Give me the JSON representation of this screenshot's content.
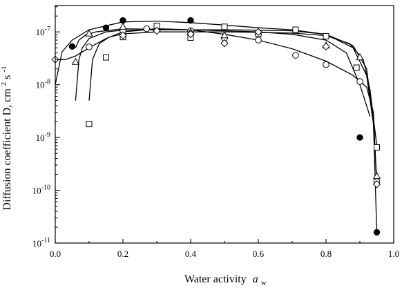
{
  "chart_data": {
    "type": "scatter",
    "title": "",
    "xlabel": "Water activity",
    "xlabel_symbol": "a",
    "xlabel_subscript": "w",
    "ylabel": "Diffusion coefficient D, cm",
    "ylabel_sup1": "2",
    "ylabel_mid": " s",
    "ylabel_sup2": "-1",
    "xlim": [
      0.0,
      1.0
    ],
    "ylim": [
      1e-11,
      5e-07
    ],
    "yscale": "log",
    "grid": false,
    "x_ticks": [
      {
        "value": 0.0,
        "label": "0.0"
      },
      {
        "value": 0.2,
        "label": "0.2"
      },
      {
        "value": 0.4,
        "label": "0.4"
      },
      {
        "value": 0.6,
        "label": "0.6"
      },
      {
        "value": 0.8,
        "label": "0.8"
      },
      {
        "value": 1.0,
        "label": "1.0"
      }
    ],
    "y_ticks": [
      {
        "value": 1e-07,
        "base": "10",
        "exp": "-7"
      },
      {
        "value": 1e-08,
        "base": "10",
        "exp": "-8"
      },
      {
        "value": 1e-09,
        "base": "10",
        "exp": "-9"
      },
      {
        "value": 1e-10,
        "base": "10",
        "exp": "-10"
      },
      {
        "value": 1e-11,
        "base": "10",
        "exp": "-11"
      }
    ],
    "series": [
      {
        "marker": "filled-circle",
        "points": [
          [
            0.05,
            5.3e-08
          ],
          [
            0.15,
            1.2e-07
          ],
          [
            0.2,
            1.65e-07
          ],
          [
            0.4,
            1.65e-07
          ],
          [
            0.9,
            1e-09
          ],
          [
            0.95,
            1.6e-11
          ]
        ]
      },
      {
        "marker": "open-circle",
        "points": [
          [
            0.1,
            5.2e-08
          ],
          [
            0.2,
            1.05e-07
          ],
          [
            0.27,
            1.15e-07
          ],
          [
            0.4,
            1.05e-07
          ],
          [
            0.5,
            7.6e-08
          ],
          [
            0.6,
            7e-08
          ],
          [
            0.71,
            3.6e-08
          ],
          [
            0.8,
            2.4e-08
          ],
          [
            0.9,
            1.15e-08
          ],
          [
            0.95,
            1.45e-10
          ]
        ]
      },
      {
        "marker": "open-triangle",
        "points": [
          [
            0.06,
            2.7e-08
          ],
          [
            0.1,
            9.3e-08
          ],
          [
            0.2,
            1.25e-07
          ],
          [
            0.3,
            1.2e-07
          ],
          [
            0.4,
            1e-07
          ],
          [
            0.5,
            8.6e-08
          ],
          [
            0.6,
            1e-07
          ],
          [
            0.71,
            1.05e-07
          ],
          [
            0.8,
            5.5e-08
          ],
          [
            0.9,
            3.3e-08
          ],
          [
            0.95,
            1.85e-10
          ]
        ]
      },
      {
        "marker": "open-square",
        "points": [
          [
            0.1,
            1.8e-09
          ],
          [
            0.15,
            3.3e-08
          ],
          [
            0.2,
            8e-08
          ],
          [
            0.3,
            1.3e-07
          ],
          [
            0.4,
            7.8e-08
          ],
          [
            0.5,
            1.25e-07
          ],
          [
            0.6,
            9.2e-08
          ],
          [
            0.71,
            1.1e-07
          ],
          [
            0.8,
            8.3e-08
          ],
          [
            0.89,
            2.1e-08
          ],
          [
            0.95,
            6.5e-10
          ]
        ]
      },
      {
        "marker": "open-diamond",
        "points": [
          [
            0.0,
            3e-08
          ],
          [
            0.2,
            8.6e-08
          ],
          [
            0.3,
            1.05e-07
          ],
          [
            0.4,
            9.1e-08
          ],
          [
            0.5,
            6.1e-08
          ],
          [
            0.6,
            1e-07
          ],
          [
            0.8,
            5.3e-08
          ],
          [
            0.95,
            1.3e-10
          ]
        ]
      }
    ],
    "fitted_curves": [
      {
        "points": [
          [
            0.0,
            1e-08
          ],
          [
            0.02,
            4.2e-08
          ],
          [
            0.05,
            7e-08
          ],
          [
            0.1,
            1.1e-07
          ],
          [
            0.2,
            1.55e-07
          ],
          [
            0.3,
            1.6e-07
          ],
          [
            0.4,
            1.5e-07
          ],
          [
            0.5,
            1.35e-07
          ],
          [
            0.6,
            1.2e-07
          ],
          [
            0.7,
            1.1e-07
          ],
          [
            0.8,
            9e-08
          ],
          [
            0.88,
            5.5e-08
          ],
          [
            0.92,
            2e-08
          ],
          [
            0.94,
            2e-09
          ],
          [
            0.95,
            1.6e-11
          ]
        ]
      },
      {
        "points": [
          [
            0.0,
            3e-08
          ],
          [
            0.03,
            3e-08
          ],
          [
            0.06,
            3.5e-08
          ],
          [
            0.1,
            5e-08
          ],
          [
            0.15,
            7.5e-08
          ],
          [
            0.2,
            1e-07
          ],
          [
            0.3,
            1.15e-07
          ],
          [
            0.4,
            1.1e-07
          ],
          [
            0.5,
            9e-08
          ],
          [
            0.6,
            7e-08
          ],
          [
            0.7,
            4.8e-08
          ],
          [
            0.8,
            2.8e-08
          ],
          [
            0.88,
            1.5e-08
          ],
          [
            0.92,
            9e-09
          ],
          [
            0.94,
            3e-09
          ],
          [
            0.95,
            1.2e-10
          ]
        ]
      },
      {
        "points": [
          [
            0.06,
            5e-08
          ],
          [
            0.07,
            7e-08
          ],
          [
            0.09,
            8.8e-08
          ],
          [
            0.12,
            1e-07
          ],
          [
            0.2,
            1.15e-07
          ],
          [
            0.3,
            1.12e-07
          ],
          [
            0.4,
            1.1e-07
          ],
          [
            0.5,
            1.05e-07
          ],
          [
            0.6,
            1e-07
          ],
          [
            0.7,
            9e-08
          ],
          [
            0.8,
            7e-08
          ],
          [
            0.86,
            4e-08
          ],
          [
            0.9,
            1e-08
          ],
          [
            0.93,
            2.5e-09
          ]
        ]
      },
      {
        "points": [
          [
            0.06,
            5e-09
          ],
          [
            0.07,
            3e-08
          ],
          [
            0.08,
            5e-08
          ],
          [
            0.1,
            7.5e-08
          ],
          [
            0.15,
            1e-07
          ],
          [
            0.2,
            1.08e-07
          ],
          [
            0.3,
            1.1e-07
          ],
          [
            0.4,
            1.1e-07
          ],
          [
            0.5,
            1.1e-07
          ],
          [
            0.6,
            1.08e-07
          ],
          [
            0.7,
            1.05e-07
          ],
          [
            0.8,
            9e-08
          ],
          [
            0.88,
            5e-08
          ],
          [
            0.92,
            1.5e-08
          ],
          [
            0.94,
            1.8e-09
          ],
          [
            0.95,
            1.5e-10
          ]
        ]
      },
      {
        "points": [
          [
            0.1,
            5e-09
          ],
          [
            0.11,
            3e-08
          ],
          [
            0.13,
            6e-08
          ],
          [
            0.16,
            8e-08
          ],
          [
            0.2,
            9.2e-08
          ],
          [
            0.3,
            1e-07
          ],
          [
            0.4,
            1e-07
          ],
          [
            0.5,
            1e-07
          ],
          [
            0.6,
            9.8e-08
          ],
          [
            0.7,
            9.5e-08
          ],
          [
            0.8,
            8.5e-08
          ],
          [
            0.87,
            6e-08
          ],
          [
            0.91,
            3e-08
          ],
          [
            0.93,
            8e-09
          ],
          [
            0.95,
            7e-10
          ]
        ]
      }
    ]
  }
}
